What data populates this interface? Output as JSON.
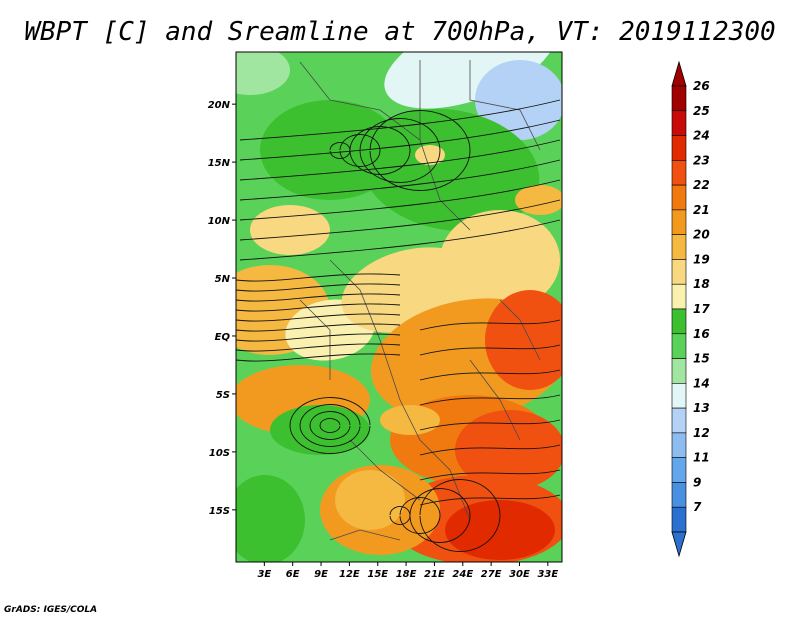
{
  "title": "WBPT [C] and Sreamline at 700hPa, VT: 2019112300",
  "footer": "GrADS: IGES/COLA",
  "map": {
    "field": "wet-bulb potential temperature at 700hPa",
    "lon_labels": [
      "3E",
      "6E",
      "9E",
      "12E",
      "15E",
      "18E",
      "21E",
      "24E",
      "27E",
      "30E",
      "33E"
    ],
    "lat_labels": [
      "20N",
      "15N",
      "10N",
      "5N",
      "EQ",
      "5S",
      "10S",
      "15S"
    ],
    "lon_range": [
      0,
      34.5
    ],
    "lat_range": [
      -19.5,
      24.5
    ],
    "overlay": "streamlines with arrowheads",
    "background_regions": [
      {
        "name": "north-west",
        "dominant_value": 16
      },
      {
        "name": "far-north-east",
        "dominant_value": 14
      },
      {
        "name": "gulf-of-guinea",
        "dominant_value": 20
      },
      {
        "name": "congo-basin-west",
        "dominant_value": 18
      },
      {
        "name": "east-africa",
        "dominant_value": 23
      },
      {
        "name": "southern-interior",
        "dominant_value": 22
      }
    ]
  },
  "colorbar": {
    "levels": [
      "26",
      "25",
      "24",
      "23",
      "22",
      "21",
      "20",
      "19",
      "18",
      "17",
      "16",
      "15",
      "14",
      "13",
      "12",
      "11",
      "9",
      "7"
    ],
    "colors": [
      "#a00000",
      "#c80a0a",
      "#e22a00",
      "#f05010",
      "#f07a10",
      "#f29a20",
      "#f5b840",
      "#f8d880",
      "#faf0b0",
      "#3cc030",
      "#5ad25a",
      "#a0e6a0",
      "#e2f6f6",
      "#b4d2f5",
      "#8cbcf0",
      "#64a6eb",
      "#4a90e0",
      "#2a70d0"
    ]
  }
}
